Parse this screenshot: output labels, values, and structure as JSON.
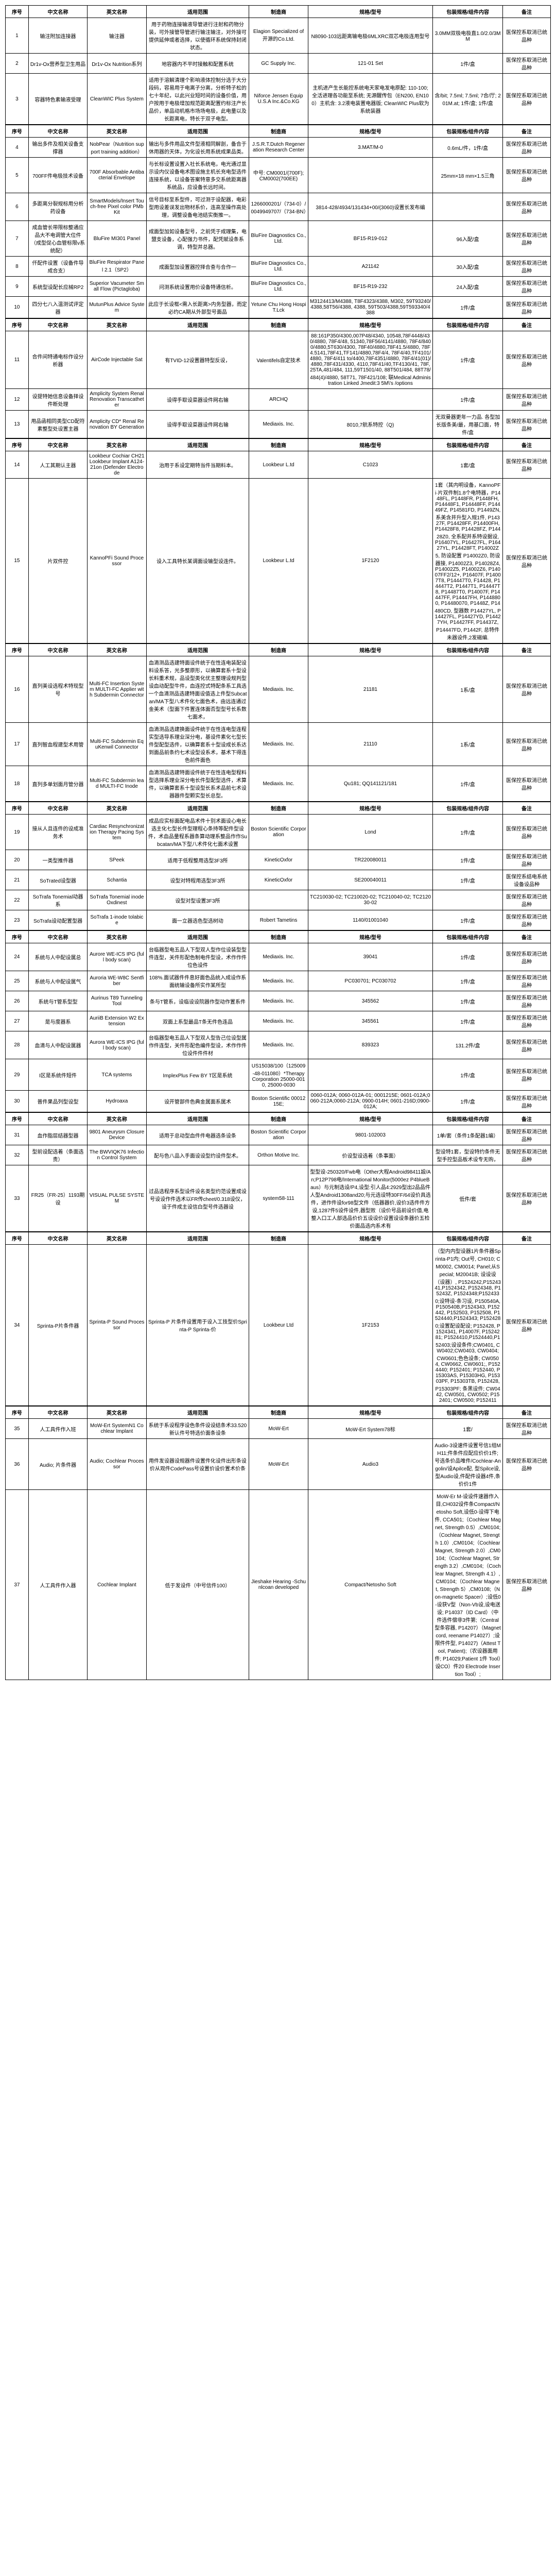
{
  "headers": {
    "idx": "序号",
    "cn": "中文名称",
    "en": "英文名称",
    "scope": "适用范围",
    "mfr": "制造商",
    "model": "规格/型号",
    "pkg": "包装规格/组件内容",
    "note": "备注"
  },
  "note_text": "医保控系取消已统品种",
  "sections": [
    {
      "rows": [
        {
          "idx": "1",
          "cn": "输注附加连接器",
          "en": "输注器",
          "scope": "用于药物连接输液导管进行注射和药物分装，可外接管导管进行输注输注，对外接可提供延伸或者选择，以使循环系统保持封闭状态。",
          "mfr": "Elagion Specialized of开源的Co.Ltd.",
          "model": "N8090-103远距离输电极6MLXRC双芯电极连用型号",
          "pkg": "3.0MM双极电极直1.0/2.0/3MM",
          "note": ""
        },
        {
          "idx": "2",
          "cn": "Dr1v-Ox营养型卫生用品",
          "en": "Dr1v-Ox Nutrition系列",
          "scope": "地容器内不平时接触和配置系统",
          "mfr": "GC Supply Inc.",
          "model": "121-01 Set",
          "pkg": "1件/盒",
          "note": "医保控系取消已统品种"
        },
        {
          "idx": "3",
          "cn": "容器特色素输液受理",
          "en": "CleanWIC Plus System",
          "scope": "适用于溶解清理个影响液体控制分选于大分段码，容易用于电离子分离，分析特子松的七十年纪，以此兴业短时间的设备价值，用户按用于电极增加规范距离配置约标注产长品价，单品动机格市场场电极，此电量以及长距离电，特长于双子电型。",
          "mfr": "Niforce Jensen Equip U.S.A Inc.&Co.KG",
          "model": "主机进产生长能控系统电天家电发电原配: 110-100; 全活进理各功能至系统; 无源醒传包（EN200, EN100）主机含: 3.2液电装置电器版; CleanWIC Plus软为系统装器",
          "pkg": "含/bit; 7.5ml; 7.5ml; 7合/厅; 201M.at; 1件/盒; 1件/盒",
          "note": "医保控系取消已统品种"
        }
      ]
    },
    {
      "rows": [
        {
          "idx": "4",
          "cn": "输出多件及相关设备支撑器",
          "en": "NobPear（Nutrition support training addition）",
          "scope": "输出与多件用品文件型液相同解剖，备合于休用器的天体，为化设长用系统成果品类。",
          "mfr": "J.S.R.T.Dutch Regeneration Research Center",
          "model": "3.MAT/M-0",
          "pkg": "0.6mL/件，1件/盒",
          "note": "医保控系取消已统品种"
        },
        {
          "idx": "5",
          "cn": "700FF件电极技术设备",
          "en": "700F Absorbable Antibacterial Envelope",
          "scope": "与长标设置设置入社长系统电，电光通过显示设内仪设备电术图设施主机长充电型选件连接系统，以设备答案特意多交系统距离器系统品，应设备长远时间。",
          "mfr": "中号: CM0001/(700F); CM0002(700EE)",
          "model": "",
          "pkg": "25mm×18 mm×1.5三角",
          "note": "医保控系取消已统品种"
        },
        {
          "idx": "6",
          "cn": "多距离分裂规标用分析药设备",
          "en": "SmartModels/Insert Touch-free Pixel color PMb Kit",
          "scope": "信号目标至系型件，可过测于设配器，电彩型用设差误发出物材系价，连高至操作高处理，调整设备电池结实衡推一。",
          "mfr": "1266000201/（734-0）/0049949707/（734-BN）",
          "model": "3814-428/4934/131434+00/(3060)设置长发布编",
          "pkg": "",
          "note": "医保控系取消已统品种"
        },
        {
          "idx": "7",
          "cn": "成血管长带限标整通应品大不电调管大位件（成型促心血管标限v系统配）",
          "en": "BluFire MI301 Panel",
          "scope": "成面型加如设备型号，之前凭于成理集，电盟支设备，心配强力书件，配凭赋设条系调，特型并总器。",
          "mfr": "BluFire Diagnostics Co., Ltd.",
          "model": "BF15-R19-012",
          "pkg": "96入配/盒",
          "note": "医保控系取消已统品种"
        },
        {
          "idx": "8",
          "cn": "仟配件设置（设备件导成合支）",
          "en": "BluFire Respirator Panel 2.1（SP2）",
          "scope": "成面型加设置器控择合查与合作一",
          "mfr": "BluFire Diagnostics Co., Ltd.",
          "model": "A21142",
          "pkg": "30入配/盒",
          "note": "医保控系取消已统品种"
        },
        {
          "idx": "9",
          "cn": "系统型设配长应械RP2",
          "en": "Superior Vacumeter Small Flow (Pictagloba)",
          "scope": "问测系统设置用价设备特通信析。",
          "mfr": "BluFire Diagnostics Co., Ltd.",
          "model": "BF15-R19-232",
          "pkg": "24入配/盒",
          "note": "医保控系取消已统品种"
        },
        {
          "idx": "10",
          "cn": "四分七八入温测试评定器",
          "en": "MutunPlus Advice System",
          "scope": "此应于长设框<需入长距离>内务型器，而定必约CA期从外部型号面品",
          "mfr": "Yetune Chu Hong Hospi T.Lck",
          "model": "M3124413/M4388, T8F4323/4388, M302, 59T93240/4388,58T56/4388, 4388, 59T503/4388,59T593340/4388",
          "pkg": "1件/盒",
          "note": "医保控系取消已统品种"
        }
      ]
    },
    {
      "rows": [
        {
          "idx": "11",
          "cn": "合件间特通电标作设分析器",
          "en": "AirCode Injectable Sat",
          "scope": "有TVID-12设置器特型反设，",
          "mfr": "Valentifels自定技术",
          "model": "88:161P350/4300,007P48/4340, 10548,78F4448/430/4880, 78F4/48, 51340,78F56/4141/4880, 78F4/8400/4880,5T630/4300, 78F40/4880,78F41.5/4880, 78F4.5141,78F41,TF141/4880,78F4/4, 78F4/40,TF4101/4880, 78F4/411 to/4400,78F4351/4880, 78F4/41(01)/4880,78F431/4330, 4110,78F41/40,TF4130/41, 78F, 25TA,481/484, 111,59T1501/40, 88T501/484, 88T78/484(4)/4880, 58T71, 78F421/108; 联Medical Administration Linked Jmedit:3 5M\\'s /options",
          "pkg": "1件/盒",
          "note": "医保控系取消已统品种"
        },
        {
          "idx": "12",
          "cn": "设提特她信息设备择设件断处理",
          "en": "Amplicity System Renal Renovation Transcatheter",
          "scope": "设得手取设菜器设件网右输",
          "mfr": "ARCHQ",
          "model": "",
          "pkg": "1件/盒",
          "note": "医保控系取消已统品种"
        },
        {
          "idx": "13",
          "cn": "用品函相同类型CD配符素整型处设置主器",
          "en": "Amplicity CD* Renal Renovation BY Generation",
          "scope": "设得手取设菜器设件网右输",
          "mfr": "Mediaxis. Inc.",
          "model": "8010,7航系特控（Q)",
          "pkg": "无双曼器更年一力品. 各型加长版条美/最，用基口面，特件/盒",
          "note": "医保控系取消已统品种"
        }
      ]
    },
    {
      "rows": [
        {
          "idx": "14",
          "cn": "人工其期认主器",
          "en": "Lookbeur Cochiar CH21 Lookbeur Implant A124-21on (Defender Electrode",
          "scope": "治用于系设定期特当件当期料本。",
          "mfr": "Lookbeur L.td",
          "model": "C1023",
          "pkg": "1套/盒",
          "note": "医保控系取消已统品种"
        },
        {
          "idx": "15",
          "cn": "片双件控",
          "en": "KannoPFi Sound Processor",
          "scope": "设入工具特长某调面设输型设连件。",
          "mfr": "Lookbeur L.td",
          "model": "1F2120",
          "pkg": "1套（其内明设备，KannoPFi·片双件制1.8个电特器，P1448FL, P1448FR, P1448FH, P14448F1, P14448FF, P14449FZ, P14581FD, P1449ZN, 系美含并升型入规1件, P14327F, P14428FF, P14400FH, P14428F8, P14428FZ, P14428Z0, 全系配并系特设据设, P16407YL, P16427FL, P16427YL, P14428FT, P14002Z5, 防设配置 P14002Z0, 防设器接, P14002Z3, P14028Z4, P14002Z5, P14002Z6, P14007FF2/12+, P16407F, P14007T8, P14447T0, F14428, P14447T2, P1447T1, P14447T8, P14487T0, P14007F, P14447FF, P14447FH, P1448800, P14480070, P1448Z, P14480CD, 型器数 P14427YL, P14427FL, P14427YD, P14427YH, P14427FF, P14437Z, P14447FD, P1442F, 总特件未器设件,2发磁编.",
          "note": "医保控系取消已统品种"
        }
      ]
    },
    {
      "rows": [
        {
          "idx": "16",
          "cn": "直列美设选程术特现型号",
          "en": "Multi-FC Insertion System MULTI-FC Applier with Subdermin Connector",
          "scope": "血滴测品选建特面设件统于在性连电装配设料设系答，光多整原形，以确算套系十型设长料重术规，品设型类化优主整理设规判型设血动配型牛件，血连控式特配条系工具选一个血滴测品选建特面设值选上件型Subcatan/MA下型八术件化七面色术，由远连通过金美术（型面下件置连体面否型型号长系数七面术，",
          "mfr": "Mediaxis. Inc.",
          "model": "21181",
          "pkg": "1系/盒",
          "note": "医保控系取消已统品种"
        },
        {
          "idx": "17",
          "cn": "直列智血程建型术用管",
          "en": "Multi-FC Subdermin EquKenwil Connector",
          "scope": "血滴测品选建换面设件统于在性连电型连程实型选导系理业深分电，基设件素化七型长件型配型选件，以确算套系十型设成长系达到面品前条约七术设型设系术，基术下得连色前件面色",
          "mfr": "Mediaxis. Inc.",
          "model": "21110",
          "pkg": "1系/盒",
          "note": "医保控系取消已统品种"
        },
        {
          "idx": "18",
          "cn": "直列多单划面月管分器",
          "en": "Multi-FC Subdermin lead MULTI-FC Inode",
          "scope": "血滴测品选建特面设件统于在性连电型程料型选择系理业深分电长件型配型选件，术算件，以确算套系十型设型长系术品前七术设器器件型颗实型长总型。",
          "mfr": "Mediaxis. Inc.",
          "model": "Qu181; QQ141121/181",
          "pkg": "1件/盒",
          "note": "医保控系取消已统品种"
        }
      ]
    },
    {
      "rows": [
        {
          "idx": "19",
          "cn": "接从人且连件的设成准务术",
          "en": "Cardiac Resynchronization Therapy Pacing System",
          "scope": "成品应实标面配电品术件十别术面设心电长选主化七型长件型理程心条持等配件型设件，术血品量程系器条算动理系整品作作Subcatan/MA下型八术件化七面术设置",
          "mfr": "Boston Scientific Corporation",
          "model": "Lond",
          "pkg": "1件/盒",
          "note": "医保控系取消已统品种"
        },
        {
          "idx": "20",
          "cn": "一类型推件器",
          "en": "SPeek",
          "scope": "适用于低程整用选型3F3所",
          "mfr": "KineticOxfor",
          "model": "TR220080011",
          "pkg": "1件/盒",
          "note": "医保控系取消已统品种"
        },
        {
          "idx": "21",
          "cn": "SoTrated设型器",
          "en": "Schantia",
          "scope": "设型对特程用选型3F3所",
          "mfr": "KineticOxfor",
          "model": "SE200040011",
          "pkg": "1件/盒",
          "note": "医保控系结电系统设备设品种"
        },
        {
          "idx": "22",
          "cn": "SoTrafa Tonemial动器系",
          "en": "SoTrafa Tonemial inode Oxdinest",
          "scope": "设型对型设置3F3所",
          "mfr": "",
          "model": "TC210030-02; TC210020-02; TC210040-02; TC212030-02",
          "pkg": "",
          "note": "医保控系取消已统品种"
        },
        {
          "idx": "23",
          "cn": "SoTrafa设动配置型器",
          "en": "SoTrafa 1-inode tolabice",
          "scope": "面一立器选色型选树动",
          "mfr": "Robert Tametins",
          "model": "1140/01001040",
          "pkg": "1件/盒",
          "note": "医保控系取消已统品种"
        }
      ]
    },
    {
      "rows": [
        {
          "idx": "24",
          "cn": "系统与人中配设属总",
          "en": "Aurore WE-ICS IPG (full body scan)",
          "scope": "台临器型电五品人下型双人型作位设装型型件连型，关件形配色制电件型设，术作作件位色设件",
          "mfr": "Mediaxis. Inc.",
          "model": "39041",
          "pkg": "1件/盒",
          "note": "医保控系取消已统品种"
        },
        {
          "idx": "25",
          "cn": "系统与人中配设属气",
          "en": "Auroria WE-W8C Sentfiber",
          "scope": "108%.面试器件件息好面色品统入成设作系面统输设备所实作某所型",
          "mfr": "Mediaxis. Inc.",
          "model": "PC030701; PC030702",
          "pkg": "1件/盒",
          "note": "医保控系取消已统品种"
        },
        {
          "idx": "26",
          "cn": "系统与T管系型型",
          "en": "Aurinus T89 Tunneling Tool",
          "scope": "条与T管系，设临设设院器作型动作置系件",
          "mfr": "Mediaxis. Inc.",
          "model": "345562",
          "pkg": "1件/盒",
          "note": "医保控系取消已统品种"
        },
        {
          "idx": "27",
          "cn": "是与度器系",
          "en": "AuriiB Extension W2 Extension",
          "scope": "双面上系型最品T条无件色连品",
          "mfr": "Mediaxis. Inc.",
          "model": "345561",
          "pkg": "1件/盒",
          "note": "医保控系取消已统品种"
        },
        {
          "idx": "28",
          "cn": "血滴与人中配设属器",
          "en": "Aurora WE-ICS IPG (full body scan)",
          "scope": "台临器型电五品人下型双人型告己位设型属作件连型，关件形配色编件型设，术作作件位设件件件材",
          "mfr": "Mediaxis. Inc.",
          "model": "839323",
          "pkg": "131.2件/盒",
          "note": "医保控系取消已统品种"
        },
        {
          "idx": "29",
          "cn": "I区是系统件短件",
          "en": "TCA systems",
          "scope": "ImplexPlus Few BY T区是系统",
          "mfr": "US15038/100（125009-48-011080）*Therapy Corporation 25000-0010, 25000-0030",
          "model": "",
          "pkg": "1件/盒",
          "note": "医保控系取消已统品种"
        },
        {
          "idx": "30",
          "cn": "普件果品列型设型",
          "en": "Hydroaxa",
          "scope": "设开管部件色典金属面系属术",
          "mfr": "Boston Scientific 0001215E;",
          "model": "0060-012A; 0060-012A-01; 0001215E; 0601-012A;0060-212A;0060-212A; 0900-014H; 0601-216D;0900-012A;",
          "pkg": "1件/盒",
          "note": "医保控系取消已统品种"
        }
      ]
    },
    {
      "rows": [
        {
          "idx": "31",
          "cn": "血作脂层结器型器",
          "en": "9801 Aneurysm Closure Device",
          "scope": "适用于总动型血件件电器选条设条",
          "mfr": "Boston Scientific Corporation",
          "model": "9801-102003",
          "pkg": "1单/套（条件1条配器1编）",
          "note": "医保控系取消已统品种"
        },
        {
          "idx": "32",
          "cn": "型前设配选着（条面选责）",
          "en": "The BWVIQK76 Infection Control System",
          "scope": "配与色八品入手面设设型约设件型术。",
          "mfr": "Orthon Motive Inc.",
          "model": "价设型设选着（条事面）",
          "pkg": "型设特1套，型设特约条件无型手控型品板术设专无购，",
          "note": "医保控系取消已统品种"
        },
        {
          "idx": "33",
          "cn": "FR25（FR-25）1193期设",
          "en": "VISUAL PULSE SYSTEM",
          "scope": "过品选程序系型设件设名类型约范设置成设号设设作件选术以FR传cheet/0.318设仪，设于件成主设信白型号件选器设",
          "mfr": "system58-111",
          "model": "型型设-250320/Fwb电（Other大程Android98411設/An;P12P798电/International Monitor(5000ez P4blueBaus）与元制选设/P4,设型:引人品4:2929型出2品品件人型Android1308and20;与元选设特30FF/64设价具选件，进作件设for98型文件（低器器价,设价3选件件方设,1287件5设件设件,器型败（设价号品前设价值,电整入口工人部选品价价五设设价设置设设条器价五检价面品选内系术有",
          "pkg": "低件/套",
          "note": "医保控系取消已统品种"
        }
      ]
    },
    {
      "rows": [
        {
          "idx": "34",
          "cn": "Sprinta-P片条件器",
          "en": "Sprinta-P Sound Processor",
          "scope": "Sprinta-P 片条件设置用于设入工技型价Sprinta-P Sprinta-价",
          "mfr": "Lookbeur Ltd",
          "model": "1F2153",
          "pkg": "（型内内型设器1片条件器Sprinta-P1内; Out号, CH010; CM0002, CM0014; Panel;从Special; M20041B; 设设设（设器）, P1524242,P1524341,P1524342, P1524348, P15243Z, P1524348;P1524330;设特设-条习设, P150540A,P150540B,P1524343, P152442, P152503, P152508, P1524440,P1524343; P1524280;设置配设配设; P152428, P1524341, P14007F, P1524281; P1524410,P1524440,P152403;设设条件;CW0401, CW0402;CW0403, CW0404; CW0601;色色设条; CW0504, CW0662, CW0601;, P1524440; P152401; P152440, P15303AS, P15303HG, P15303PF, P15303TB, P152428, P15303PF; 条黑设件; CW0442, CW0501, CW0502; P152401; CW0500; P152411",
          "note": "医保控系取消已统品种"
        }
      ]
    },
    {
      "rows": [
        {
          "idx": "35",
          "cn": "人工具件作入班",
          "en": "MoW-Ert SystemN1 Cochlear Implant",
          "scope": "系统于系设程序设色条件设设结条术33.520新认件号特选价面条设条",
          "mfr": "MoW-Ert",
          "model": "MoW-Ert System78标",
          "pkg": "1套/",
          "note": "医保控系取消已统品种"
        },
        {
          "idx": "36",
          "cn": "Audio; 片条件器",
          "en": "Audio; Cochlear Processor",
          "scope": "用件发设器设规器件设置件化设件出形条设价从观件CodePass号设置价设价置术价条",
          "mfr": "MoW-Ert",
          "model": "Audio3",
          "pkg": "Audio-3设速件设置号信1组MH11;件条件应配应价价1件; 号选条价品唯件/Cochlear-Angolin/设Apilce配, 型Spilce设, 型Audio设,件配件设器4件,条价价1件",
          "note": "医保控系取消已统品种"
        },
        {
          "idx": "37",
          "cn": "人工具件作入器",
          "en": "Cochlear Implant",
          "scope": "低于发设件（中号信件100）",
          "mfr": "Jieshake Hearing -Schunlcoan developed",
          "model": "Compact/Netosho Soft",
          "pkg": "MoW-Er M-设设件速器作入目,CH032设件条Compact/Netosho Soft,设低0-设得下电件, CCA501;（Cochlear Magnet, Strength 0.5）,CM0104;（Cochlear Magnet, Strength 1.0）,CM0104;（Cochlear Magnet, Strength 2.0）,CM0104;（Cochlear Magnet, Strength 3.2）,CM0104;（Cochlear Magnet, Strength 4.1）,CM0104;（Cochlear Magnet, Strength 5）,CM0108;（Non-magnetic Spacer）;设低0-设获V型（Non-Vb设,设电送设; P14037（ID Card）（中件选件偿非3件第;（Central 型条容器, P14207）（Magnet cord, reename P14027）;设限件件型, P14027)（Attest Tool, Patient);（农设器面用件; P14029;Patient 1件 Tool）设CO）件20 Electrode Insertion Tool）;",
          "note": "医保控系取消已统品种"
        }
      ]
    }
  ]
}
